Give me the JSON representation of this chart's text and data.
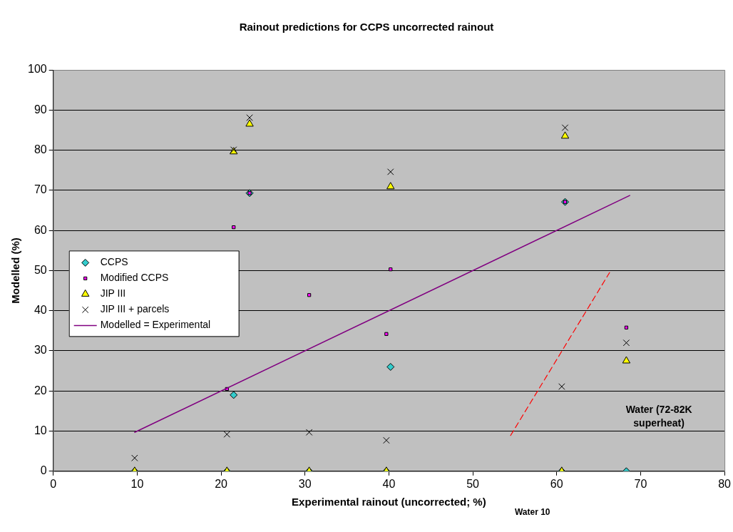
{
  "chart_data": {
    "type": "scatter",
    "title": "Rainout predictions for CCPS uncorrected rainout",
    "xlabel": "Experimental rainout (uncorrected; %)",
    "ylabel": "Modelled (%)",
    "xlim": [
      0,
      80
    ],
    "xticks": [
      0,
      10,
      20,
      30,
      40,
      50,
      60,
      70,
      80
    ],
    "ylim": [
      0,
      100
    ],
    "yticks": [
      0,
      10,
      20,
      30,
      40,
      50,
      60,
      70,
      80,
      90,
      100
    ],
    "grid": "y",
    "legend": "left",
    "annotations": [
      "Water (72-82K superheat)",
      "Water 10"
    ],
    "series": [
      {
        "name": "CCPS",
        "type": "scatter",
        "marker": "diamond",
        "color": "#33cccc",
        "x": [
          9.7,
          20.7,
          30.5,
          39.7,
          60.6,
          68.3,
          21.5,
          23.4,
          40.2,
          61.0
        ],
        "values": [
          0,
          0,
          0,
          0,
          0,
          0,
          19.0,
          69.3,
          26.0,
          67.1
        ]
      },
      {
        "name": "Modified CCPS",
        "type": "scatter",
        "marker": "square",
        "color": "#ff00ff",
        "x": [
          21.5,
          20.7,
          30.5,
          40.2,
          39.7,
          23.4,
          61.0,
          68.3
        ],
        "values": [
          60.8,
          20.5,
          43.9,
          50.3,
          34.2,
          69.3,
          67.1,
          35.8
        ]
      },
      {
        "name": "JIP III",
        "type": "scatter",
        "marker": "triangle",
        "color": "#ffff00",
        "x": [
          9.7,
          20.7,
          30.5,
          39.7,
          60.6,
          21.5,
          23.4,
          40.2,
          61.0,
          68.3
        ],
        "values": [
          0,
          0,
          0,
          0,
          0,
          79.6,
          86.5,
          70.9,
          83.5,
          27.5
        ]
      },
      {
        "name": "JIP III + parcels",
        "type": "scatter",
        "marker": "cross",
        "color": "#000000",
        "x": [
          9.7,
          20.7,
          30.5,
          39.7,
          21.5,
          23.4,
          40.2,
          61.0,
          60.6,
          68.3
        ],
        "values": [
          3.3,
          9.2,
          9.7,
          7.7,
          80.1,
          88.1,
          74.6,
          85.6,
          21.1,
          32.0
        ]
      },
      {
        "name": "Modelled = Experimental",
        "type": "line",
        "marker": "none",
        "line_style": "solid",
        "color": "#800080",
        "x": [
          9.7,
          68.7
        ],
        "values": [
          9.7,
          68.7
        ]
      },
      {
        "type": "line",
        "marker": "none",
        "line_style": "dashed",
        "color": "#ff0000",
        "x": [
          54.5,
          66.3
        ],
        "values": [
          8.9,
          49.5
        ]
      }
    ]
  }
}
